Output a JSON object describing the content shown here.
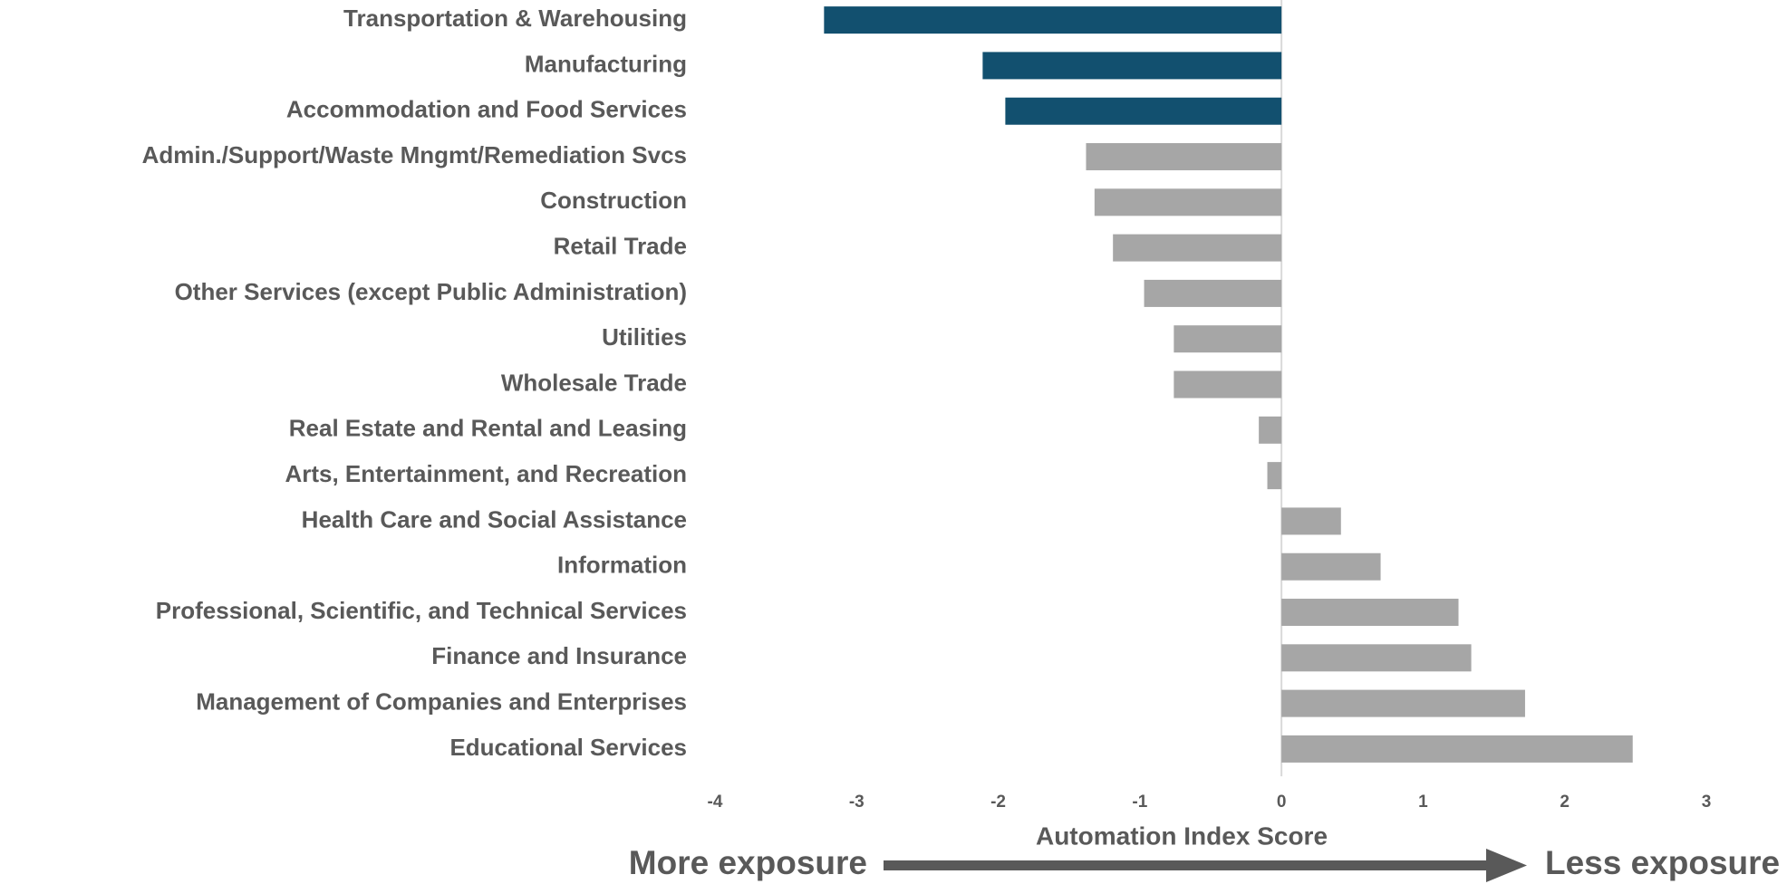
{
  "chart_data": {
    "type": "barh",
    "x_label": "Automation Index Score",
    "annotations": [
      "More exposure",
      "Less exposure"
    ],
    "categories": [
      "Transportation & Warehousing",
      "Manufacturing",
      "Accommodation and Food Services",
      "Admin./Support/Waste Mngmt/Remediation Svcs",
      "Construction",
      "Retail Trade",
      "Other Services (except Public Administration)",
      "Utilities",
      "Wholesale Trade",
      "Real Estate and Rental and Leasing",
      "Arts, Entertainment, and Recreation",
      "Health Care and Social Assistance",
      "Information",
      "Professional, Scientific, and Technical Services",
      "Finance and Insurance",
      "Management of Companies and Enterprises",
      "Educational Services"
    ],
    "values": [
      -3.23,
      -2.11,
      -1.95,
      -1.38,
      -1.32,
      -1.19,
      -0.97,
      -0.76,
      -0.76,
      -0.16,
      -0.1,
      0.42,
      0.7,
      1.25,
      1.34,
      1.72,
      2.48
    ],
    "colors": [
      "#12506f",
      "#12506f",
      "#12506f",
      "#a6a6a6",
      "#a6a6a6",
      "#a6a6a6",
      "#a6a6a6",
      "#a6a6a6",
      "#a6a6a6",
      "#a6a6a6",
      "#a6a6a6",
      "#a6a6a6",
      "#a6a6a6",
      "#a6a6a6",
      "#a6a6a6",
      "#a6a6a6",
      "#a6a6a6"
    ],
    "xlim": [
      -4,
      3
    ],
    "xticks": [
      -4,
      -3,
      -2,
      -1,
      0,
      1,
      2,
      3
    ],
    "grid": false
  }
}
